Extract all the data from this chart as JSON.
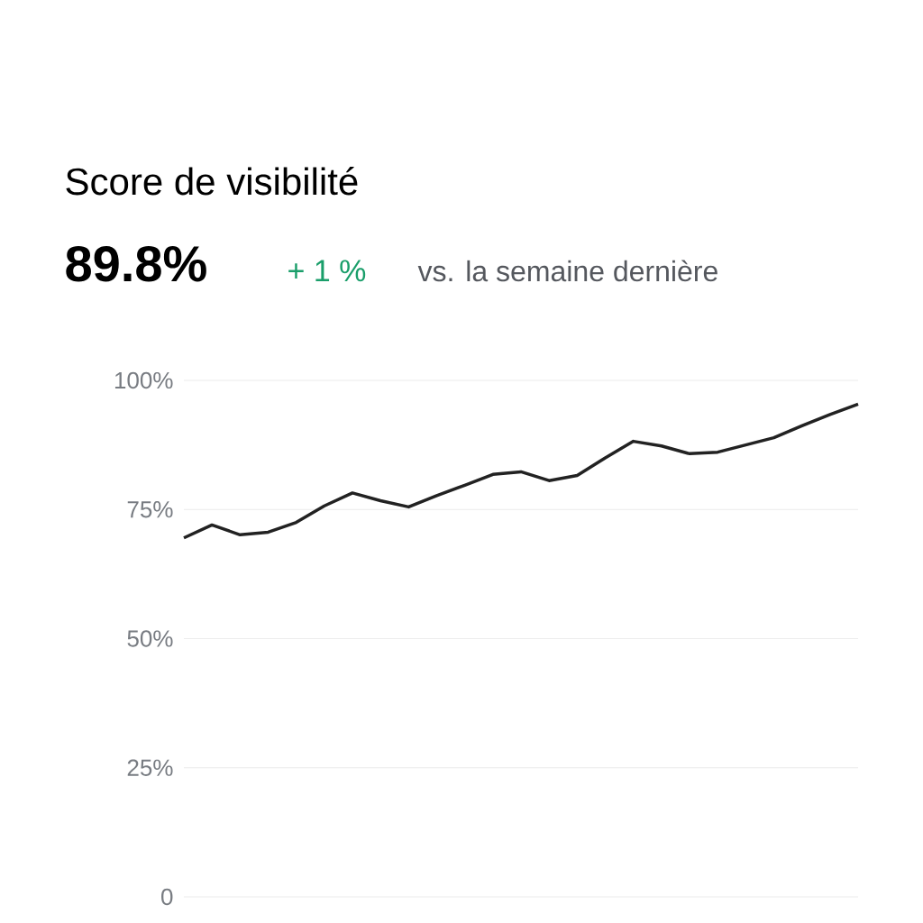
{
  "chart_data": {
    "type": "line",
    "title": "Score de visibilité",
    "annotations": [
      "89.8%",
      "+ 1 %",
      "vs. la semaine dernière"
    ],
    "categories": [
      null,
      null,
      null,
      null,
      null,
      null,
      null,
      null,
      null,
      null,
      null,
      null,
      null,
      null,
      null,
      null,
      null,
      null,
      null,
      null,
      null,
      null,
      null,
      null,
      null
    ],
    "series": [
      {
        "color": "#222222",
        "values": [
          69.5,
          72.0,
          70.1,
          70.6,
          72.5,
          75.7,
          78.2,
          76.7,
          75.5,
          77.7,
          79.7,
          81.8,
          82.3,
          80.6,
          81.6,
          85.0,
          88.2,
          87.3,
          85.8,
          86.1,
          87.5,
          88.9,
          91.2,
          93.4,
          95.4
        ]
      }
    ],
    "ylim": [
      0,
      100
    ],
    "yticks": [
      {
        "value": 100,
        "label": "100%"
      },
      {
        "value": 75,
        "label": "75%"
      },
      {
        "value": 50,
        "label": "50%"
      },
      {
        "value": 25,
        "label": "25%"
      },
      0
    ],
    "grid": "y"
  }
}
